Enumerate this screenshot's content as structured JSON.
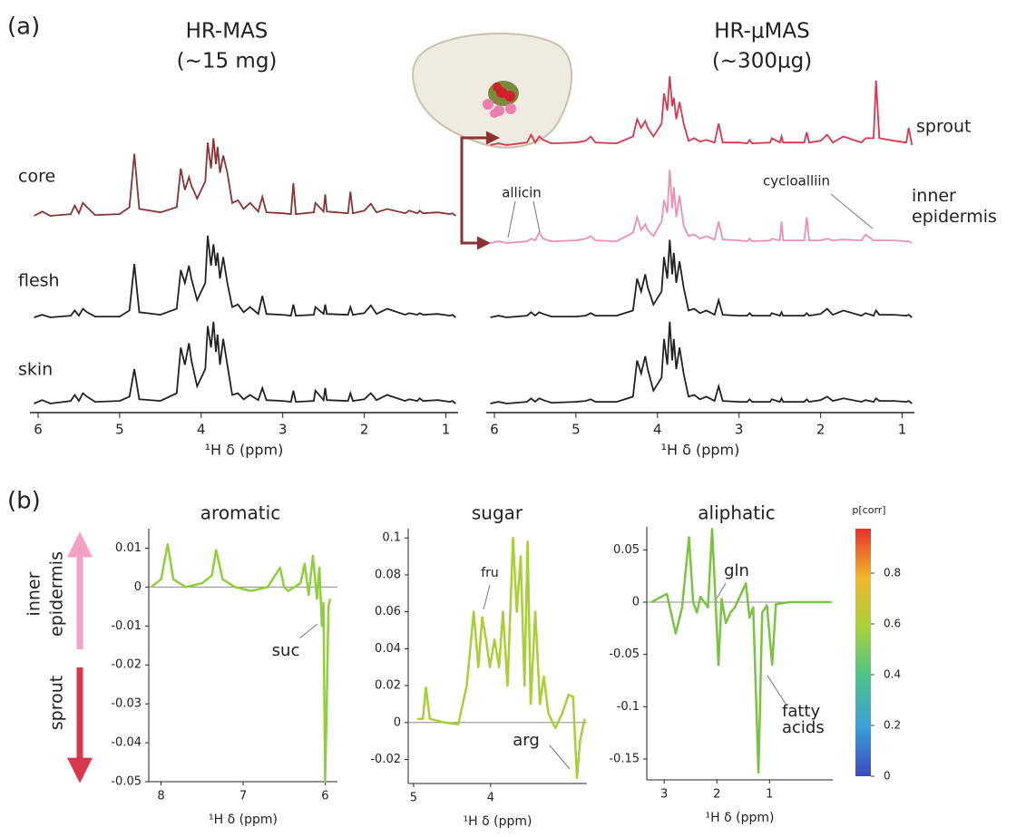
{
  "panel_labels": [
    "(a)",
    "(b)"
  ],
  "y_direction": {
    "up": [
      "inner",
      "epidermis"
    ],
    "down": "sprout"
  },
  "colorbar": {
    "title": "p[corr]",
    "clim": [
      0,
      1
    ],
    "ticks": [
      0,
      0.2,
      0.4,
      0.6,
      0.8
    ]
  },
  "chart_data": [
    {
      "type": "spectra",
      "title": "HR-MAS",
      "subtitle": "(~15 mg)",
      "xlabel": "¹H δ (ppm)",
      "xlim": [
        6.1,
        0.85
      ],
      "xticks": [
        6,
        5,
        4,
        3,
        2,
        1
      ],
      "x": [
        6.05,
        5.95,
        5.85,
        5.6,
        5.55,
        5.5,
        5.45,
        5.4,
        5.3,
        5.0,
        4.88,
        4.82,
        4.76,
        4.5,
        4.3,
        4.25,
        4.2,
        4.15,
        4.12,
        4.05,
        3.95,
        3.92,
        3.88,
        3.85,
        3.82,
        3.8,
        3.77,
        3.73,
        3.68,
        3.62,
        3.55,
        3.48,
        3.4,
        3.3,
        3.25,
        3.2,
        3.0,
        2.9,
        2.87,
        2.84,
        2.62,
        2.6,
        2.5,
        2.48,
        2.46,
        2.2,
        2.17,
        2.14,
        2.0,
        1.92,
        1.85,
        1.72,
        1.5,
        1.45,
        1.35,
        1.32,
        1.28,
        1.1,
        0.95,
        0.92,
        0.88
      ],
      "series": [
        {
          "name": "core",
          "color": "#8b3232",
          "values": [
            0,
            5,
            0,
            2,
            12,
            3,
            15,
            10,
            1,
            2,
            10,
            72,
            8,
            4,
            10,
            55,
            30,
            45,
            35,
            20,
            40,
            85,
            55,
            90,
            60,
            80,
            50,
            70,
            50,
            15,
            18,
            8,
            15,
            5,
            22,
            4,
            3,
            2,
            38,
            2,
            4,
            15,
            5,
            25,
            5,
            3,
            28,
            3,
            6,
            14,
            4,
            8,
            3,
            6,
            3,
            6,
            3,
            4,
            2,
            3,
            0
          ]
        },
        {
          "name": "flesh",
          "color": "#222222",
          "values": [
            0,
            3,
            0,
            2,
            8,
            2,
            10,
            6,
            1,
            1,
            8,
            62,
            6,
            3,
            10,
            55,
            40,
            60,
            45,
            20,
            40,
            95,
            60,
            85,
            60,
            75,
            45,
            70,
            40,
            12,
            15,
            6,
            12,
            4,
            25,
            4,
            3,
            2,
            15,
            2,
            3,
            12,
            4,
            15,
            4,
            3,
            12,
            3,
            5,
            14,
            4,
            10,
            3,
            5,
            3,
            5,
            3,
            4,
            2,
            3,
            0
          ]
        },
        {
          "name": "skin",
          "color": "#222222",
          "values": [
            0,
            4,
            0,
            3,
            10,
            3,
            12,
            8,
            2,
            3,
            8,
            40,
            5,
            3,
            12,
            65,
            45,
            70,
            50,
            20,
            40,
            90,
            65,
            95,
            60,
            80,
            45,
            75,
            45,
            10,
            12,
            5,
            10,
            4,
            18,
            4,
            3,
            2,
            15,
            2,
            3,
            15,
            4,
            18,
            4,
            3,
            12,
            3,
            5,
            12,
            4,
            10,
            3,
            5,
            3,
            6,
            3,
            4,
            2,
            3,
            0
          ]
        }
      ]
    },
    {
      "type": "spectra",
      "title": "HR-μMAS",
      "subtitle": "(~300μg)",
      "xlabel": "¹H δ (ppm)",
      "xlim": [
        6.1,
        0.85
      ],
      "xticks": [
        6,
        5,
        4,
        3,
        2,
        1
      ],
      "x": [
        6.05,
        5.95,
        5.85,
        5.6,
        5.55,
        5.5,
        5.45,
        5.4,
        5.3,
        5.0,
        4.88,
        4.82,
        4.76,
        4.5,
        4.3,
        4.25,
        4.2,
        4.15,
        4.12,
        4.05,
        3.95,
        3.92,
        3.88,
        3.85,
        3.82,
        3.8,
        3.77,
        3.73,
        3.68,
        3.62,
        3.55,
        3.48,
        3.4,
        3.3,
        3.25,
        3.2,
        3.0,
        2.9,
        2.87,
        2.84,
        2.62,
        2.6,
        2.5,
        2.48,
        2.46,
        2.2,
        2.17,
        2.14,
        2.0,
        1.92,
        1.85,
        1.72,
        1.5,
        1.45,
        1.35,
        1.32,
        1.28,
        1.1,
        0.95,
        0.92,
        0.88
      ],
      "annotations": [
        "allicin",
        "cycloalliin"
      ],
      "series": [
        {
          "name": "sprout",
          "color": "#d7374f",
          "values": [
            0,
            2,
            0,
            3,
            12,
            3,
            10,
            6,
            2,
            3,
            5,
            10,
            3,
            2,
            10,
            30,
            20,
            28,
            20,
            10,
            25,
            60,
            40,
            80,
            45,
            55,
            30,
            50,
            25,
            5,
            8,
            4,
            6,
            3,
            25,
            3,
            3,
            2,
            6,
            2,
            3,
            8,
            3,
            10,
            3,
            3,
            15,
            3,
            5,
            12,
            3,
            10,
            3,
            8,
            8,
            75,
            8,
            5,
            3,
            20,
            0
          ]
        },
        {
          "name": "inner epidermis",
          "color": "#ec8fb6",
          "values": [
            0,
            2,
            0,
            2,
            5,
            3,
            12,
            5,
            2,
            3,
            5,
            8,
            3,
            2,
            12,
            30,
            15,
            22,
            15,
            8,
            25,
            50,
            35,
            85,
            40,
            65,
            30,
            55,
            20,
            8,
            10,
            5,
            8,
            4,
            25,
            4,
            3,
            2,
            5,
            2,
            3,
            5,
            3,
            25,
            3,
            3,
            30,
            3,
            3,
            5,
            3,
            4,
            3,
            10,
            3,
            3,
            3,
            3,
            2,
            2,
            0
          ]
        },
        {
          "color": "#222222",
          "values": [
            0,
            2,
            0,
            2,
            6,
            2,
            6,
            4,
            1,
            1,
            2,
            5,
            2,
            2,
            8,
            45,
            30,
            50,
            35,
            15,
            30,
            70,
            45,
            90,
            50,
            75,
            40,
            65,
            35,
            8,
            10,
            5,
            8,
            3,
            20,
            3,
            2,
            2,
            5,
            2,
            2,
            5,
            2,
            6,
            2,
            2,
            5,
            2,
            4,
            10,
            3,
            8,
            2,
            5,
            2,
            8,
            3,
            3,
            2,
            3,
            0
          ]
        },
        {
          "color": "#222222",
          "values": [
            0,
            2,
            0,
            2,
            6,
            2,
            6,
            4,
            1,
            2,
            3,
            5,
            2,
            2,
            8,
            50,
            35,
            55,
            40,
            15,
            30,
            75,
            45,
            95,
            50,
            75,
            40,
            65,
            35,
            8,
            10,
            5,
            8,
            3,
            20,
            3,
            2,
            2,
            5,
            2,
            2,
            5,
            2,
            6,
            2,
            2,
            5,
            2,
            4,
            8,
            3,
            6,
            2,
            4,
            2,
            6,
            3,
            3,
            2,
            3,
            0
          ]
        }
      ]
    },
    {
      "type": "loading",
      "title": "aromatic",
      "xlabel": "¹H δ (ppm)",
      "annotations": [
        "suc"
      ],
      "xlim": [
        8.15,
        5.85
      ],
      "xticks": [
        8,
        7,
        6
      ],
      "ylim": [
        -0.05,
        0.015
      ],
      "yticks": [
        0.01,
        0,
        -0.01,
        -0.02,
        -0.03,
        -0.04,
        -0.05
      ],
      "color": "#8fcf3c",
      "x": [
        8.12,
        8.0,
        7.92,
        7.85,
        7.7,
        7.5,
        7.38,
        7.33,
        7.25,
        7.1,
        6.9,
        6.7,
        6.55,
        6.5,
        6.45,
        6.3,
        6.25,
        6.2,
        6.15,
        6.1,
        6.07,
        6.04,
        6.02,
        6.0,
        5.98,
        5.96,
        5.94
      ],
      "values": [
        0,
        0.002,
        0.011,
        0.002,
        0,
        0.001,
        0.003,
        0.0095,
        0.002,
        0,
        -0.001,
        0,
        0.005,
        0,
        -0.001,
        0.001,
        0.006,
        -0.002,
        0.008,
        -0.003,
        0.005,
        -0.01,
        -0.004,
        -0.05,
        -0.03,
        -0.005,
        -0.003
      ]
    },
    {
      "type": "loading",
      "title": "sugar",
      "xlabel": "¹H δ (ppm)",
      "annotations": [
        "fru",
        "arg"
      ],
      "xlim": [
        5.07,
        2.75
      ],
      "xticks": [
        5,
        4
      ],
      "ylim": [
        -0.033,
        0.105
      ],
      "yticks": [
        0.1,
        0.08,
        0.06,
        0.04,
        0.02,
        0,
        -0.02
      ],
      "color": "#a8cf38",
      "x": [
        4.95,
        4.88,
        4.84,
        4.79,
        4.6,
        4.42,
        4.31,
        4.22,
        4.16,
        4.11,
        4.06,
        4.01,
        3.95,
        3.89,
        3.84,
        3.78,
        3.71,
        3.66,
        3.61,
        3.56,
        3.52,
        3.48,
        3.42,
        3.36,
        3.31,
        3.25,
        3.16,
        3.07,
        2.99,
        2.93,
        2.88,
        2.84,
        2.78
      ],
      "values": [
        0.002,
        0.002,
        0.019,
        0.002,
        0,
        -0.001,
        0.02,
        0.06,
        0.03,
        0.057,
        0.045,
        0.03,
        0.045,
        0.03,
        0.06,
        0.02,
        0.1,
        0.06,
        0.09,
        0.02,
        0.098,
        0.01,
        0.06,
        0.01,
        0.025,
        0.005,
        -0.003,
        0.005,
        0.015,
        0.014,
        -0.03,
        -0.01,
        0.002
      ]
    },
    {
      "type": "loading",
      "title": "aliphatic",
      "xlabel": "¹H δ (ppm)",
      "annotations": [
        "gln",
        "fatty acids"
      ],
      "xlim": [
        3.33,
        -0.2
      ],
      "xticks": [
        3,
        2,
        1
      ],
      "ylim": [
        -0.17,
        0.072
      ],
      "yticks": [
        0.05,
        0,
        -0.05,
        -0.1,
        -0.15
      ],
      "color": "#7cc242",
      "x": [
        3.24,
        2.95,
        2.78,
        2.66,
        2.53,
        2.45,
        2.38,
        2.31,
        2.17,
        2.09,
        2.02,
        1.97,
        1.91,
        1.83,
        1.74,
        1.66,
        1.45,
        1.38,
        1.31,
        1.21,
        1.14,
        1.05,
        0.95,
        0.88,
        0.62,
        0.1,
        -0.16
      ],
      "values": [
        0,
        0.008,
        -0.03,
        -0.005,
        0.062,
        0,
        -0.01,
        0.005,
        -0.005,
        0.07,
        -0.005,
        -0.06,
        0.003,
        -0.02,
        -0.01,
        -0.005,
        0.018,
        -0.015,
        -0.005,
        -0.163,
        -0.01,
        -0.003,
        -0.06,
        -0.002,
        0,
        0,
        0
      ]
    }
  ]
}
